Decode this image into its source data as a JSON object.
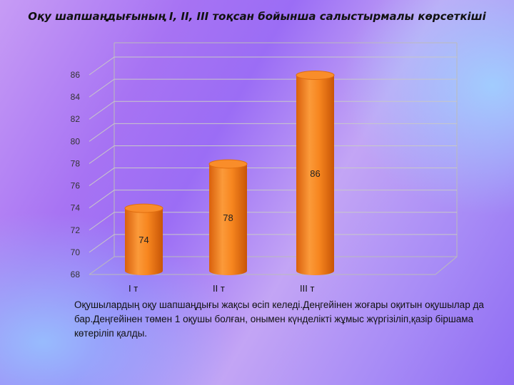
{
  "chart_data": {
    "type": "bar",
    "title": "Оқу шапшаңдығының I, II, III тоқсан бойынша салыстырмалы көрсеткіші",
    "categories": [
      "I т",
      "II т",
      "III т"
    ],
    "values": [
      74,
      78,
      86
    ],
    "data_labels": [
      "74",
      "78",
      "86"
    ],
    "ylim": [
      68,
      86
    ],
    "yticks": [
      "68",
      "70",
      "72",
      "74",
      "76",
      "78",
      "80",
      "82",
      "84",
      "86"
    ],
    "grid": true,
    "style": "3d-cylinder",
    "bar_color": "#f7861f"
  },
  "description": "Оқушылардың оқу шапшаңдығы жақсы өсіп келеді.Деңгейінен жоғары оқитын оқушылар да бар.Деңгейінен төмен 1 оқушы болған, онымен күнделікті жұмыс жүргізіліп,қазір біршама көтеріліп қалды."
}
